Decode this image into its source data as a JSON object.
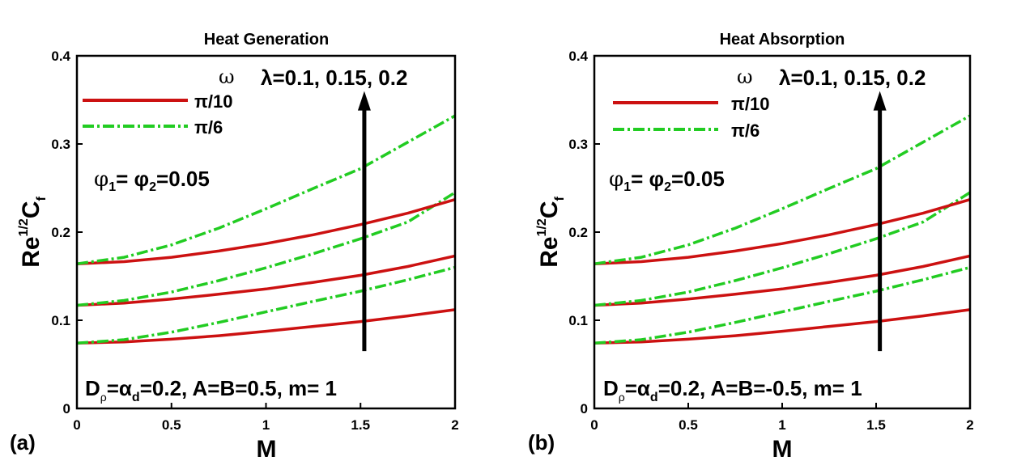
{
  "chart_data": [
    {
      "type": "line",
      "panel_label": "(a)",
      "title": "Heat Generation",
      "xlabel": "M",
      "ylabel_main": "Re",
      "ylabel_sup": "1/2",
      "ylabel_c": "C",
      "ylabel_sub": "f",
      "xlim": [
        0,
        2
      ],
      "ylim": [
        0,
        0.4
      ],
      "xticks": [
        "0",
        "0.5",
        "1",
        "1.5",
        "2"
      ],
      "yticks": [
        "0",
        "0.1",
        "0.2",
        "0.3",
        "0.4"
      ],
      "legend_title": "ω",
      "legend": [
        {
          "label": "π/10",
          "color": "#cc1111",
          "style": "solid"
        },
        {
          "label": "π/6",
          "color": "#22cc22",
          "style": "dashdot"
        }
      ],
      "annotation_lambda": "λ=0.1, 0.15, 0.2",
      "annotation_phi": "φ1= φ2=0.05",
      "annotation_phi_a": "φ",
      "annotation_phi_sub1": "1",
      "annotation_phi_mid": "= φ",
      "annotation_phi_sub2": "2",
      "annotation_phi_end": "=0.05",
      "annotation_params_a": "D",
      "annotation_params_sub1": "ρ",
      "annotation_params_b": "=α",
      "annotation_params_sub2": "d",
      "annotation_params_c": "=0.2, A=B=0.5, m= 1",
      "x": [
        0,
        0.25,
        0.5,
        0.75,
        1.0,
        1.25,
        1.5,
        1.75,
        2.0
      ],
      "series": [
        {
          "name": "π/10, λ=0.1",
          "omega": "π/10",
          "values": [
            0.074,
            0.0755,
            0.0785,
            0.0825,
            0.0875,
            0.093,
            0.0985,
            0.105,
            0.112
          ]
        },
        {
          "name": "π/6, λ=0.1",
          "omega": "π/6",
          "values": [
            0.074,
            0.078,
            0.0865,
            0.0975,
            0.1095,
            0.1215,
            0.133,
            0.146,
            0.16
          ]
        },
        {
          "name": "π/10, λ=0.15",
          "omega": "π/10",
          "values": [
            0.117,
            0.1195,
            0.124,
            0.1295,
            0.1355,
            0.143,
            0.151,
            0.161,
            0.173
          ]
        },
        {
          "name": "π/6, λ=0.15",
          "omega": "π/6",
          "values": [
            0.117,
            0.1225,
            0.132,
            0.145,
            0.1595,
            0.1755,
            0.1925,
            0.2115,
            0.245
          ]
        },
        {
          "name": "π/10, λ=0.2",
          "omega": "π/10",
          "values": [
            0.164,
            0.1665,
            0.1715,
            0.1785,
            0.187,
            0.197,
            0.2085,
            0.2215,
            0.237
          ]
        },
        {
          "name": "π/6, λ=0.2",
          "omega": "π/6",
          "values": [
            0.164,
            0.1715,
            0.1855,
            0.2045,
            0.2265,
            0.2495,
            0.272,
            0.302,
            0.332
          ]
        }
      ],
      "arrow": {
        "x": 1.52,
        "from": 0.065,
        "to": 0.36
      }
    },
    {
      "type": "line",
      "panel_label": "(b)",
      "title": "Heat Absorption",
      "xlabel": "M",
      "ylabel_main": "Re",
      "ylabel_sup": "1/2",
      "ylabel_c": "C",
      "ylabel_sub": "f",
      "xlim": [
        0,
        2
      ],
      "ylim": [
        0,
        0.4
      ],
      "xticks": [
        "0",
        "0.5",
        "1",
        "1.5",
        "2"
      ],
      "yticks": [
        "0",
        "0.1",
        "0.2",
        "0.3",
        "0.4"
      ],
      "legend_title": "ω",
      "legend": [
        {
          "label": "π/10",
          "color": "#cc1111",
          "style": "solid"
        },
        {
          "label": "π/6",
          "color": "#22cc22",
          "style": "dashdot"
        }
      ],
      "annotation_lambda": "λ=0.1, 0.15, 0.2",
      "annotation_phi": "φ1= φ2=0.05",
      "annotation_phi_a": "φ",
      "annotation_phi_sub1": "1",
      "annotation_phi_mid": "= φ",
      "annotation_phi_sub2": "2",
      "annotation_phi_end": "=0.05",
      "annotation_params_a": "D",
      "annotation_params_sub1": "ρ",
      "annotation_params_b": "=α",
      "annotation_params_sub2": "d",
      "annotation_params_c": "=0.2, A=B=-0.5, m= 1",
      "x": [
        0,
        0.25,
        0.5,
        0.75,
        1.0,
        1.25,
        1.5,
        1.75,
        2.0
      ],
      "series": [
        {
          "name": "π/10, λ=0.1",
          "omega": "π/10",
          "values": [
            0.074,
            0.0755,
            0.0785,
            0.0825,
            0.0875,
            0.093,
            0.0985,
            0.105,
            0.112
          ]
        },
        {
          "name": "π/6, λ=0.1",
          "omega": "π/6",
          "values": [
            0.074,
            0.078,
            0.0865,
            0.0975,
            0.1095,
            0.1215,
            0.133,
            0.146,
            0.16
          ]
        },
        {
          "name": "π/10, λ=0.15",
          "omega": "π/10",
          "values": [
            0.117,
            0.1195,
            0.124,
            0.1295,
            0.1355,
            0.143,
            0.151,
            0.161,
            0.173
          ]
        },
        {
          "name": "π/6, λ=0.15",
          "omega": "π/6",
          "values": [
            0.117,
            0.1225,
            0.132,
            0.145,
            0.1595,
            0.1755,
            0.1925,
            0.2115,
            0.245
          ]
        },
        {
          "name": "π/10, λ=0.2",
          "omega": "π/10",
          "values": [
            0.164,
            0.1665,
            0.1715,
            0.1785,
            0.187,
            0.197,
            0.2085,
            0.2215,
            0.237
          ]
        },
        {
          "name": "π/6, λ=0.2",
          "omega": "π/6",
          "values": [
            0.164,
            0.1715,
            0.1855,
            0.2045,
            0.2265,
            0.2495,
            0.272,
            0.302,
            0.332
          ]
        }
      ],
      "arrow": {
        "x": 1.52,
        "from": 0.065,
        "to": 0.36
      }
    }
  ]
}
